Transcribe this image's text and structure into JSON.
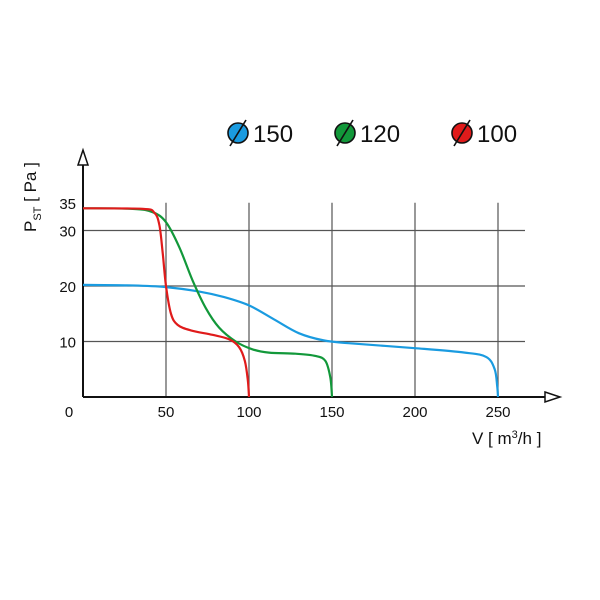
{
  "chart_data": {
    "type": "line",
    "title": "",
    "xlabel": "V [ m3/h ]",
    "xlabel_main": "V [ m",
    "xlabel_sup": "3",
    "xlabel_tail": "/h ]",
    "ylabel_main": "P",
    "ylabel_sub": "ST",
    "ylabel_tail": " [ Pa ]",
    "xlim": [
      0,
      250
    ],
    "ylim": [
      0,
      35
    ],
    "x_ticks": [
      "0",
      "50",
      "100",
      "150",
      "200",
      "250"
    ],
    "x_tick_values": [
      0,
      50,
      100,
      150,
      200,
      250
    ],
    "y_ticks": [
      "10",
      "20",
      "30",
      "35"
    ],
    "y_tick_values": [
      10,
      20,
      30,
      35
    ],
    "grid": true,
    "legend_position": "top-right",
    "legend_symbol": "⌀",
    "series": [
      {
        "name": "150",
        "color": "#1a9be0",
        "points": [
          [
            0,
            20.2
          ],
          [
            30,
            20.1
          ],
          [
            50,
            19.8
          ],
          [
            70,
            19
          ],
          [
            85,
            18
          ],
          [
            100,
            16.5
          ],
          [
            115,
            14
          ],
          [
            130,
            11.5
          ],
          [
            145,
            10.2
          ],
          [
            160,
            9.7
          ],
          [
            200,
            8.8
          ],
          [
            230,
            8
          ],
          [
            243,
            7.2
          ],
          [
            248,
            5
          ],
          [
            249.5,
            2
          ],
          [
            250,
            0
          ]
        ]
      },
      {
        "name": "120",
        "color": "#12983a",
        "points": [
          [
            0,
            34
          ],
          [
            30,
            33.9
          ],
          [
            42,
            33.3
          ],
          [
            50,
            31.5
          ],
          [
            58,
            27
          ],
          [
            66,
            21
          ],
          [
            74,
            16
          ],
          [
            82,
            12.5
          ],
          [
            92,
            10
          ],
          [
            102,
            8.6
          ],
          [
            112,
            8
          ],
          [
            128,
            7.8
          ],
          [
            140,
            7.4
          ],
          [
            146,
            6.5
          ],
          [
            149,
            3.5
          ],
          [
            150,
            0
          ]
        ]
      },
      {
        "name": "100",
        "color": "#e01b1b",
        "points": [
          [
            0,
            34
          ],
          [
            36,
            33.9
          ],
          [
            43,
            33.2
          ],
          [
            46,
            31
          ],
          [
            48,
            26
          ],
          [
            50,
            20
          ],
          [
            53,
            15
          ],
          [
            57,
            13
          ],
          [
            65,
            12
          ],
          [
            78,
            11.2
          ],
          [
            88,
            10.4
          ],
          [
            94,
            9
          ],
          [
            97.5,
            6.5
          ],
          [
            99.3,
            3
          ],
          [
            100,
            0
          ]
        ]
      }
    ]
  }
}
